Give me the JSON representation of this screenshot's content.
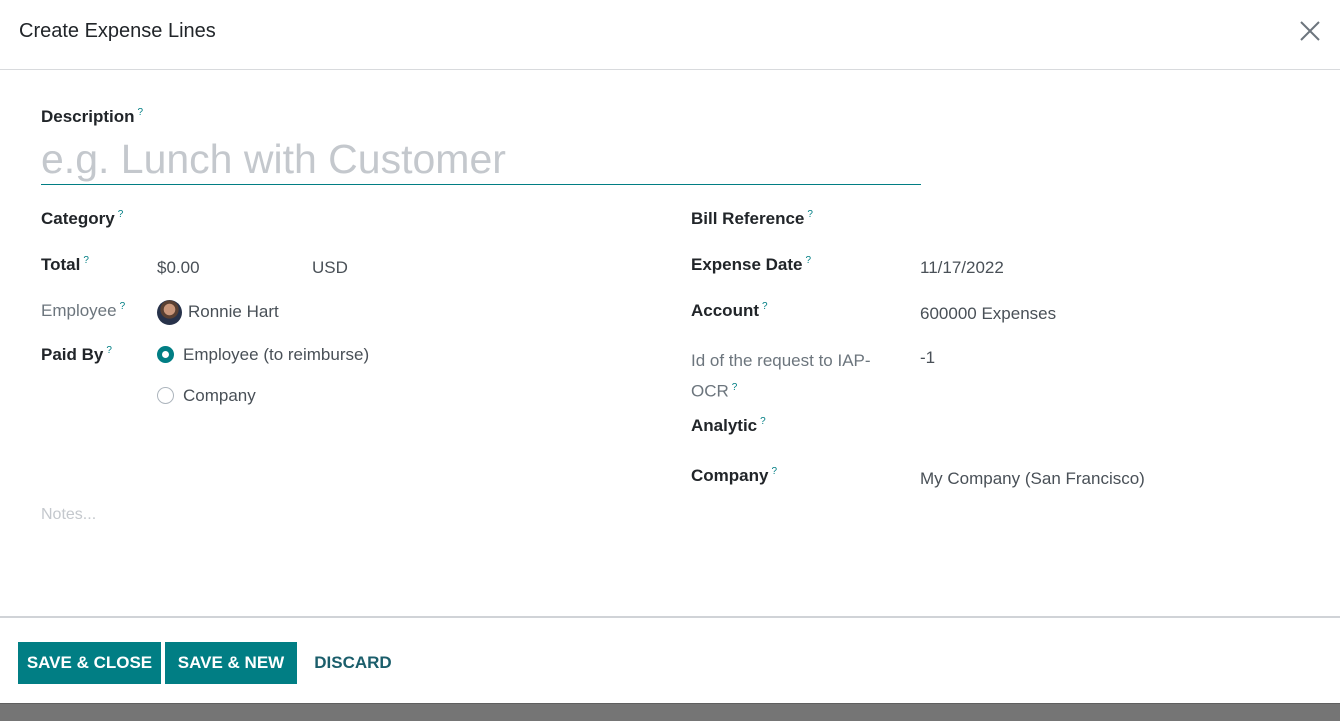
{
  "dialog": {
    "title": "Create Expense Lines",
    "close_icon": "close-icon"
  },
  "help_mark": "?",
  "description": {
    "label": "Description",
    "placeholder": "e.g. Lunch with Customer",
    "value": ""
  },
  "left": {
    "category": {
      "label": "Category",
      "value": ""
    },
    "total": {
      "label": "Total",
      "amount": "$0.00",
      "currency": "USD"
    },
    "employee": {
      "label": "Employee",
      "value": "Ronnie Hart"
    },
    "paid_by": {
      "label": "Paid By",
      "options": [
        "Employee (to reimburse)",
        "Company"
      ],
      "selected": "Employee (to reimburse)"
    }
  },
  "right": {
    "bill_reference": {
      "label": "Bill Reference",
      "value": ""
    },
    "expense_date": {
      "label": "Expense Date",
      "value": "11/17/2022"
    },
    "account": {
      "label": "Account",
      "value": "600000 Expenses"
    },
    "iap_ocr": {
      "label_line1": "Id of the request to IAP-",
      "label_line2": "OCR",
      "value": "-1"
    },
    "analytic": {
      "label": "Analytic",
      "value": ""
    },
    "company": {
      "label": "Company",
      "value": "My Company (San Francisco)"
    }
  },
  "notes": {
    "placeholder": "Notes..."
  },
  "footer": {
    "save_close": "SAVE & CLOSE",
    "save_new": "SAVE & NEW",
    "discard": "DISCARD"
  },
  "colors": {
    "primary": "#017e84"
  }
}
